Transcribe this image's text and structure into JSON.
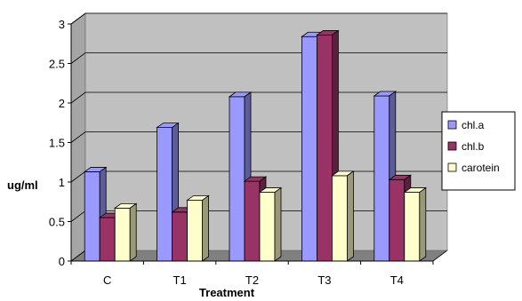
{
  "chart_data": {
    "type": "bar",
    "style": "3d-clustered-column",
    "title": "",
    "xlabel": "Treatment",
    "ylabel": "ug/ml",
    "categories": [
      "C",
      "T1",
      "T2",
      "T3",
      "T4"
    ],
    "ylim": [
      0,
      3
    ],
    "yticks": [
      "0",
      "0.5",
      "1",
      "1.5",
      "2",
      "2.5",
      "3"
    ],
    "grid": true,
    "legend_position": "right",
    "series": [
      {
        "name": "chl.a",
        "color": "#9999FF",
        "values": [
          1.13,
          1.69,
          2.08,
          2.84,
          2.09
        ]
      },
      {
        "name": "chl.b",
        "color": "#993366",
        "values": [
          0.55,
          0.62,
          1.01,
          2.86,
          1.03
        ]
      },
      {
        "name": "carotein",
        "color": "#FFFFCC",
        "values": [
          0.67,
          0.77,
          0.87,
          1.08,
          0.87
        ]
      }
    ],
    "colors": {
      "wall": "#C0C0C0",
      "floor": "#808080",
      "grid": "#000000"
    }
  }
}
